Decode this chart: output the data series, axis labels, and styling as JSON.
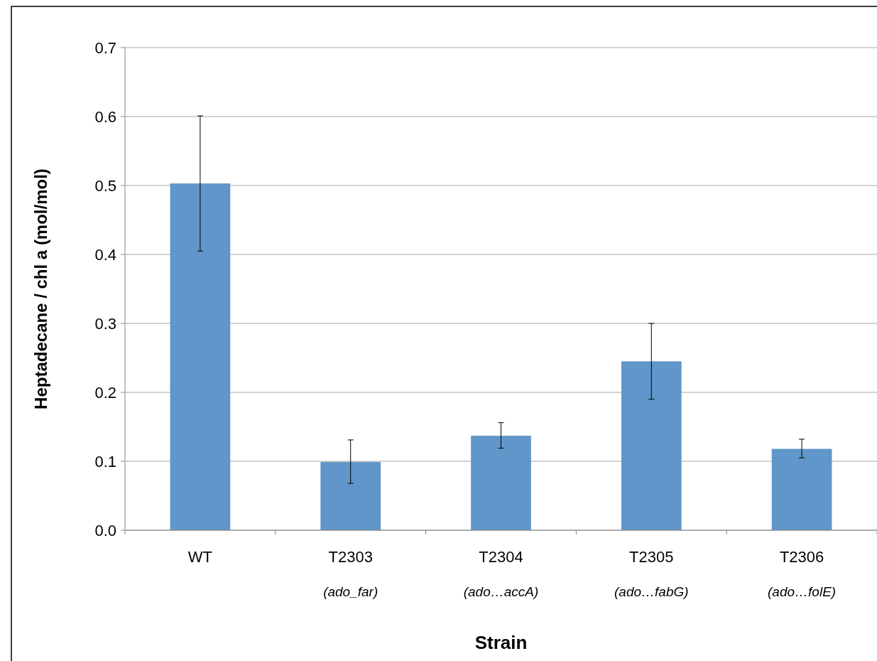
{
  "chart_data": {
    "type": "bar",
    "xlabel": "Strain",
    "ylabel": "Heptadecane / chl a (mol/mol)",
    "categories": [
      "WT",
      "T2303\n(ado_far)",
      "T2304\n(ado…accA)",
      "T2305\n(ado…fabG)",
      "T2306\n(ado…folE)"
    ],
    "values": [
      0.503,
      0.099,
      0.137,
      0.245,
      0.118
    ],
    "errors": [
      [
        0.405,
        0.601
      ],
      [
        0.068,
        0.131
      ],
      [
        0.119,
        0.156
      ],
      [
        0.19,
        0.3
      ],
      [
        0.105,
        0.132
      ]
    ],
    "color": "#6096c9",
    "ylim": [
      0,
      0.7
    ],
    "yticks": [
      {
        "value": 0,
        "label": "0.0"
      },
      0.1,
      0.2,
      0.3,
      0.4,
      0.5,
      0.6,
      0.7
    ],
    "grid": "y"
  }
}
